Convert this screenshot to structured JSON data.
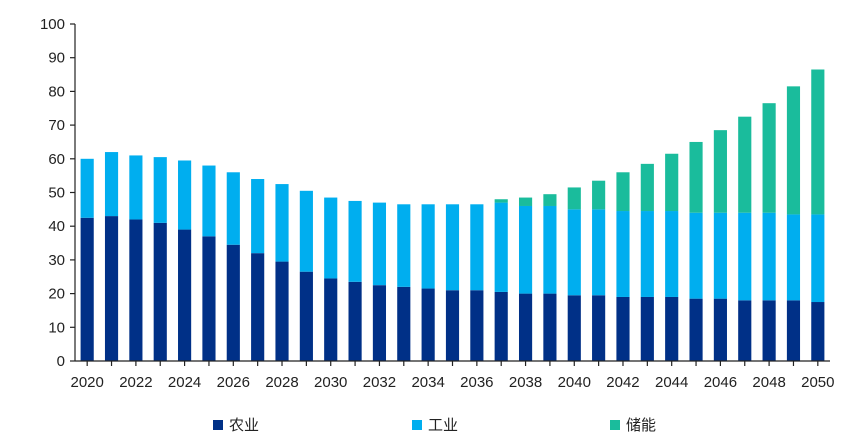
{
  "chart_data": {
    "type": "bar",
    "stacked": true,
    "title": "",
    "xlabel": "",
    "ylabel": "",
    "ylim": [
      0,
      100
    ],
    "y_ticks": [
      0,
      10,
      20,
      30,
      40,
      50,
      60,
      70,
      80,
      90,
      100
    ],
    "categories": [
      2020,
      2021,
      2022,
      2023,
      2024,
      2025,
      2026,
      2027,
      2028,
      2029,
      2030,
      2031,
      2032,
      2033,
      2034,
      2035,
      2036,
      2037,
      2038,
      2039,
      2040,
      2041,
      2042,
      2043,
      2044,
      2045,
      2046,
      2047,
      2048,
      2049,
      2050
    ],
    "x_tick_labels": [
      "2020",
      "2022",
      "2024",
      "2026",
      "2028",
      "2030",
      "2032",
      "2034",
      "2036",
      "2038",
      "2040",
      "2042",
      "2044",
      "2046",
      "2048",
      "2050"
    ],
    "series": [
      {
        "name": "农业",
        "color": "#003087",
        "values": [
          42.5,
          43,
          42,
          41,
          39,
          37,
          34.5,
          32,
          29.5,
          26.5,
          24.5,
          23.5,
          22.5,
          22,
          21.5,
          21,
          21,
          20.5,
          20,
          20,
          19.5,
          19.5,
          19,
          19,
          19,
          18.5,
          18.5,
          18,
          18,
          18,
          17.5
        ]
      },
      {
        "name": "工业",
        "color": "#00aeef",
        "values": [
          17.5,
          19,
          19,
          19.5,
          20.5,
          21,
          21.5,
          22,
          23,
          24,
          24,
          24,
          24.5,
          24.5,
          25,
          25.5,
          25.5,
          26.5,
          26,
          26,
          25.5,
          25.5,
          25.5,
          25.5,
          25.5,
          25.5,
          25.5,
          26,
          26,
          25.5,
          26
        ]
      },
      {
        "name": "储能",
        "color": "#1abc9c",
        "values": [
          0,
          0,
          0,
          0,
          0,
          0,
          0,
          0,
          0,
          0,
          0,
          0,
          0,
          0,
          0,
          0,
          0,
          1,
          2.5,
          3.5,
          6.5,
          8.5,
          11.5,
          14,
          17,
          21,
          24.5,
          28.5,
          32.5,
          38,
          43
        ]
      }
    ],
    "legend_position": "bottom"
  }
}
